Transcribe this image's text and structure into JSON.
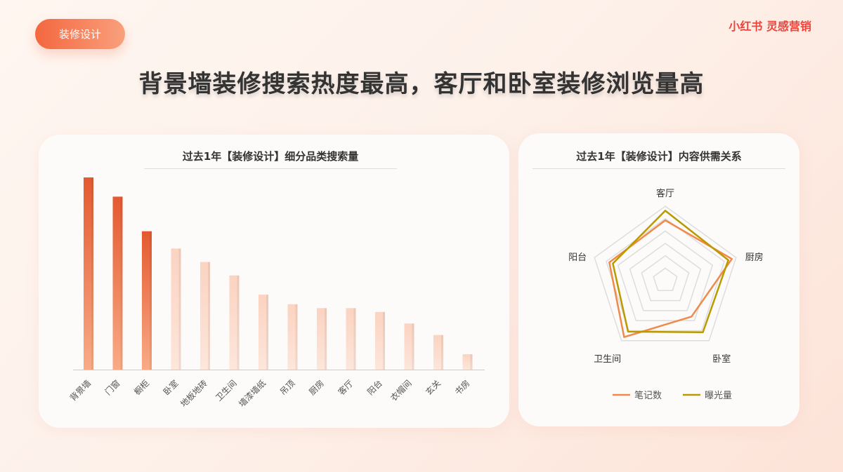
{
  "tag": "装修设计",
  "logo": "小红书 灵感营销",
  "title": "背景墙装修搜索热度最高，客厅和卧室装修浏览量高",
  "colors": {
    "bar_highlight": "#e9623a",
    "bar_normal": "#fcdccd",
    "notes": "#f08a4b",
    "exposure": "#b99a00"
  },
  "chart_data": [
    {
      "type": "bar",
      "title": "过去1年【装修设计】细分品类搜索量",
      "categories": [
        "背景墙",
        "门窗",
        "橱柜",
        "卧室",
        "地板地砖",
        "卫生间",
        "墙漆墙纸",
        "吊顶",
        "厨房",
        "客厅",
        "阳台",
        "衣帽间",
        "玄关",
        "书房"
      ],
      "values": [
        100,
        90,
        72,
        63,
        56,
        49,
        39,
        34,
        32,
        32,
        30,
        24,
        18,
        8
      ],
      "highlighted": [
        0,
        1,
        2
      ],
      "ylim": [
        0,
        100
      ],
      "grid": false
    },
    {
      "type": "radar",
      "title": "过去1年【装修设计】内容供需关系",
      "categories": [
        "客厅",
        "厨房",
        "卧室",
        "卫生间",
        "阳台"
      ],
      "series": [
        {
          "name": "笔记数",
          "values": [
            0.81,
            0.94,
            0.6,
            0.94,
            0.79
          ]
        },
        {
          "name": "曝光量",
          "values": [
            0.94,
            0.89,
            0.86,
            0.85,
            0.74
          ]
        }
      ],
      "rlim": [
        0,
        1
      ],
      "rings": 6,
      "legend": "bottom"
    }
  ]
}
